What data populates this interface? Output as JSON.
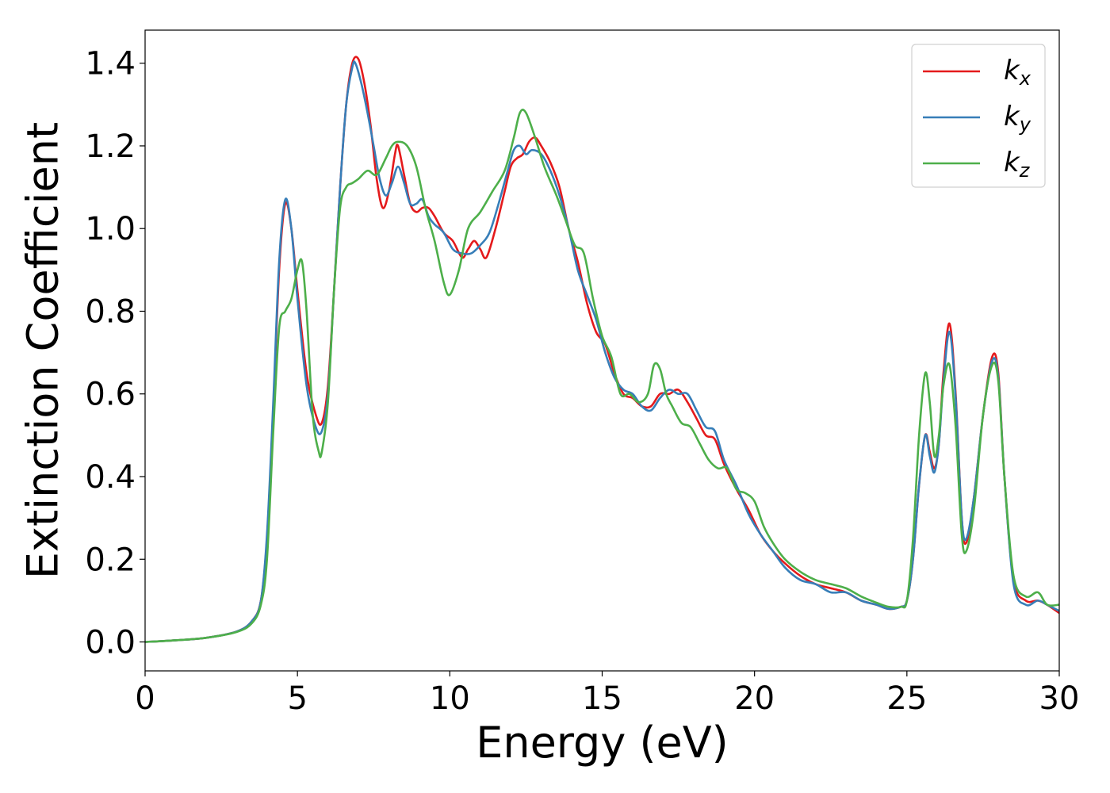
{
  "chart_data": {
    "type": "line",
    "title": "",
    "xlabel": "Energy (eV)",
    "ylabel": "Extinction Coefficient",
    "xlim": [
      0,
      30
    ],
    "ylim": [
      -0.07,
      1.48
    ],
    "xticks": [
      0,
      5,
      10,
      15,
      20,
      25,
      30
    ],
    "xtick_labels": [
      "0",
      "5",
      "10",
      "15",
      "20",
      "25",
      "30"
    ],
    "yticks": [
      0.0,
      0.2,
      0.4,
      0.6,
      0.8,
      1.0,
      1.2,
      1.4
    ],
    "ytick_labels": [
      "0.0",
      "0.2",
      "0.4",
      "0.6",
      "0.8",
      "1.0",
      "1.2",
      "1.4"
    ],
    "grid": false,
    "legend_position": "top-right",
    "series": [
      {
        "name": "k_x",
        "label_base": "k",
        "label_sub": "x",
        "color": "#e41a1c",
        "points": [
          [
            0,
            0
          ],
          [
            1,
            0.004
          ],
          [
            2,
            0.01
          ],
          [
            3,
            0.025
          ],
          [
            3.5,
            0.05
          ],
          [
            3.8,
            0.1
          ],
          [
            4.0,
            0.25
          ],
          [
            4.2,
            0.55
          ],
          [
            4.4,
            0.9
          ],
          [
            4.6,
            1.06
          ],
          [
            4.8,
            1.0
          ],
          [
            5.0,
            0.85
          ],
          [
            5.3,
            0.65
          ],
          [
            5.6,
            0.55
          ],
          [
            5.8,
            0.53
          ],
          [
            6.0,
            0.62
          ],
          [
            6.2,
            0.85
          ],
          [
            6.4,
            1.1
          ],
          [
            6.6,
            1.3
          ],
          [
            6.8,
            1.4
          ],
          [
            7.0,
            1.41
          ],
          [
            7.2,
            1.35
          ],
          [
            7.4,
            1.25
          ],
          [
            7.6,
            1.12
          ],
          [
            7.8,
            1.05
          ],
          [
            8.0,
            1.09
          ],
          [
            8.2,
            1.18
          ],
          [
            8.3,
            1.2
          ],
          [
            8.5,
            1.13
          ],
          [
            8.7,
            1.06
          ],
          [
            8.9,
            1.04
          ],
          [
            9.1,
            1.05
          ],
          [
            9.3,
            1.05
          ],
          [
            9.5,
            1.03
          ],
          [
            9.8,
            0.99
          ],
          [
            10.1,
            0.97
          ],
          [
            10.4,
            0.93
          ],
          [
            10.6,
            0.95
          ],
          [
            10.8,
            0.97
          ],
          [
            11.0,
            0.95
          ],
          [
            11.2,
            0.93
          ],
          [
            11.5,
            1.0
          ],
          [
            11.8,
            1.09
          ],
          [
            12.0,
            1.15
          ],
          [
            12.2,
            1.17
          ],
          [
            12.4,
            1.18
          ],
          [
            12.6,
            1.21
          ],
          [
            12.8,
            1.22
          ],
          [
            13.0,
            1.2
          ],
          [
            13.3,
            1.16
          ],
          [
            13.6,
            1.1
          ],
          [
            13.9,
            1.0
          ],
          [
            14.2,
            0.92
          ],
          [
            14.5,
            0.82
          ],
          [
            14.8,
            0.75
          ],
          [
            15.1,
            0.72
          ],
          [
            15.4,
            0.65
          ],
          [
            15.7,
            0.6
          ],
          [
            16.0,
            0.59
          ],
          [
            16.3,
            0.57
          ],
          [
            16.6,
            0.57
          ],
          [
            16.9,
            0.6
          ],
          [
            17.2,
            0.6
          ],
          [
            17.5,
            0.61
          ],
          [
            17.8,
            0.58
          ],
          [
            18.1,
            0.54
          ],
          [
            18.4,
            0.5
          ],
          [
            18.7,
            0.49
          ],
          [
            19.0,
            0.43
          ],
          [
            19.4,
            0.37
          ],
          [
            19.8,
            0.32
          ],
          [
            20.2,
            0.26
          ],
          [
            20.6,
            0.22
          ],
          [
            21.0,
            0.19
          ],
          [
            21.5,
            0.16
          ],
          [
            22.0,
            0.14
          ],
          [
            22.5,
            0.13
          ],
          [
            23.0,
            0.12
          ],
          [
            23.5,
            0.1
          ],
          [
            24.0,
            0.09
          ],
          [
            24.4,
            0.08
          ],
          [
            24.8,
            0.085
          ],
          [
            25.0,
            0.1
          ],
          [
            25.2,
            0.2
          ],
          [
            25.4,
            0.38
          ],
          [
            25.6,
            0.5
          ],
          [
            25.75,
            0.46
          ],
          [
            25.9,
            0.42
          ],
          [
            26.05,
            0.48
          ],
          [
            26.2,
            0.65
          ],
          [
            26.4,
            0.77
          ],
          [
            26.6,
            0.6
          ],
          [
            26.8,
            0.3
          ],
          [
            26.95,
            0.24
          ],
          [
            27.2,
            0.35
          ],
          [
            27.5,
            0.55
          ],
          [
            27.8,
            0.69
          ],
          [
            28.0,
            0.65
          ],
          [
            28.2,
            0.4
          ],
          [
            28.5,
            0.15
          ],
          [
            28.9,
            0.1
          ],
          [
            29.3,
            0.1
          ],
          [
            29.6,
            0.09
          ],
          [
            30,
            0.07
          ]
        ]
      },
      {
        "name": "k_y",
        "label_base": "k",
        "label_sub": "y",
        "color": "#377eb8",
        "points": [
          [
            0,
            0
          ],
          [
            1,
            0.004
          ],
          [
            2,
            0.01
          ],
          [
            3,
            0.025
          ],
          [
            3.5,
            0.05
          ],
          [
            3.8,
            0.1
          ],
          [
            4.0,
            0.26
          ],
          [
            4.2,
            0.57
          ],
          [
            4.4,
            0.92
          ],
          [
            4.6,
            1.07
          ],
          [
            4.8,
            1.0
          ],
          [
            5.0,
            0.83
          ],
          [
            5.3,
            0.62
          ],
          [
            5.6,
            0.52
          ],
          [
            5.8,
            0.51
          ],
          [
            6.0,
            0.6
          ],
          [
            6.2,
            0.85
          ],
          [
            6.4,
            1.1
          ],
          [
            6.6,
            1.3
          ],
          [
            6.8,
            1.39
          ],
          [
            6.9,
            1.4
          ],
          [
            7.1,
            1.35
          ],
          [
            7.3,
            1.28
          ],
          [
            7.5,
            1.2
          ],
          [
            7.7,
            1.12
          ],
          [
            7.9,
            1.08
          ],
          [
            8.1,
            1.11
          ],
          [
            8.3,
            1.15
          ],
          [
            8.5,
            1.11
          ],
          [
            8.7,
            1.06
          ],
          [
            8.9,
            1.06
          ],
          [
            9.1,
            1.07
          ],
          [
            9.3,
            1.03
          ],
          [
            9.5,
            1.01
          ],
          [
            9.8,
            0.99
          ],
          [
            10.1,
            0.95
          ],
          [
            10.4,
            0.94
          ],
          [
            10.7,
            0.94
          ],
          [
            11.0,
            0.96
          ],
          [
            11.3,
            0.99
          ],
          [
            11.6,
            1.06
          ],
          [
            11.9,
            1.14
          ],
          [
            12.1,
            1.19
          ],
          [
            12.3,
            1.2
          ],
          [
            12.5,
            1.18
          ],
          [
            12.7,
            1.19
          ],
          [
            13.0,
            1.18
          ],
          [
            13.3,
            1.14
          ],
          [
            13.6,
            1.08
          ],
          [
            13.9,
            1.0
          ],
          [
            14.2,
            0.9
          ],
          [
            14.5,
            0.84
          ],
          [
            14.8,
            0.78
          ],
          [
            15.1,
            0.7
          ],
          [
            15.4,
            0.64
          ],
          [
            15.7,
            0.61
          ],
          [
            16.0,
            0.6
          ],
          [
            16.3,
            0.57
          ],
          [
            16.6,
            0.56
          ],
          [
            16.9,
            0.59
          ],
          [
            17.2,
            0.61
          ],
          [
            17.5,
            0.6
          ],
          [
            17.8,
            0.6
          ],
          [
            18.1,
            0.56
          ],
          [
            18.4,
            0.52
          ],
          [
            18.7,
            0.51
          ],
          [
            19.0,
            0.44
          ],
          [
            19.4,
            0.38
          ],
          [
            19.8,
            0.31
          ],
          [
            20.2,
            0.26
          ],
          [
            20.6,
            0.22
          ],
          [
            21.0,
            0.18
          ],
          [
            21.5,
            0.15
          ],
          [
            22.0,
            0.14
          ],
          [
            22.5,
            0.12
          ],
          [
            23.0,
            0.12
          ],
          [
            23.5,
            0.1
          ],
          [
            24.0,
            0.09
          ],
          [
            24.4,
            0.08
          ],
          [
            24.8,
            0.085
          ],
          [
            25.0,
            0.1
          ],
          [
            25.2,
            0.2
          ],
          [
            25.4,
            0.38
          ],
          [
            25.6,
            0.5
          ],
          [
            25.75,
            0.45
          ],
          [
            25.9,
            0.41
          ],
          [
            26.05,
            0.48
          ],
          [
            26.2,
            0.63
          ],
          [
            26.4,
            0.75
          ],
          [
            26.6,
            0.59
          ],
          [
            26.8,
            0.3
          ],
          [
            26.95,
            0.25
          ],
          [
            27.2,
            0.35
          ],
          [
            27.5,
            0.55
          ],
          [
            27.8,
            0.68
          ],
          [
            28.0,
            0.64
          ],
          [
            28.2,
            0.4
          ],
          [
            28.5,
            0.14
          ],
          [
            28.9,
            0.09
          ],
          [
            29.3,
            0.1
          ],
          [
            29.6,
            0.09
          ],
          [
            30,
            0.075
          ]
        ]
      },
      {
        "name": "k_z",
        "label_base": "k",
        "label_sub": "z",
        "color": "#4daf4a",
        "points": [
          [
            0,
            0
          ],
          [
            1,
            0.004
          ],
          [
            2,
            0.01
          ],
          [
            3,
            0.024
          ],
          [
            3.5,
            0.045
          ],
          [
            3.8,
            0.09
          ],
          [
            4.0,
            0.2
          ],
          [
            4.2,
            0.5
          ],
          [
            4.4,
            0.76
          ],
          [
            4.6,
            0.8
          ],
          [
            4.8,
            0.83
          ],
          [
            5.0,
            0.9
          ],
          [
            5.15,
            0.92
          ],
          [
            5.3,
            0.8
          ],
          [
            5.5,
            0.55
          ],
          [
            5.7,
            0.46
          ],
          [
            5.8,
            0.46
          ],
          [
            6.0,
            0.58
          ],
          [
            6.2,
            0.85
          ],
          [
            6.4,
            1.05
          ],
          [
            6.6,
            1.1
          ],
          [
            6.8,
            1.11
          ],
          [
            7.0,
            1.12
          ],
          [
            7.3,
            1.14
          ],
          [
            7.6,
            1.13
          ],
          [
            7.9,
            1.17
          ],
          [
            8.1,
            1.2
          ],
          [
            8.3,
            1.21
          ],
          [
            8.6,
            1.2
          ],
          [
            8.9,
            1.15
          ],
          [
            9.2,
            1.05
          ],
          [
            9.5,
            0.97
          ],
          [
            9.8,
            0.87
          ],
          [
            10.0,
            0.84
          ],
          [
            10.3,
            0.9
          ],
          [
            10.6,
            1.0
          ],
          [
            11.0,
            1.04
          ],
          [
            11.4,
            1.09
          ],
          [
            11.8,
            1.14
          ],
          [
            12.1,
            1.22
          ],
          [
            12.3,
            1.28
          ],
          [
            12.5,
            1.28
          ],
          [
            12.8,
            1.22
          ],
          [
            13.1,
            1.15
          ],
          [
            13.5,
            1.08
          ],
          [
            13.8,
            1.02
          ],
          [
            14.1,
            0.96
          ],
          [
            14.4,
            0.94
          ],
          [
            14.7,
            0.83
          ],
          [
            15.0,
            0.74
          ],
          [
            15.3,
            0.69
          ],
          [
            15.6,
            0.6
          ],
          [
            15.9,
            0.6
          ],
          [
            16.2,
            0.58
          ],
          [
            16.5,
            0.6
          ],
          [
            16.7,
            0.67
          ],
          [
            16.9,
            0.66
          ],
          [
            17.1,
            0.6
          ],
          [
            17.3,
            0.57
          ],
          [
            17.6,
            0.53
          ],
          [
            17.9,
            0.52
          ],
          [
            18.2,
            0.48
          ],
          [
            18.5,
            0.44
          ],
          [
            18.8,
            0.42
          ],
          [
            19.1,
            0.42
          ],
          [
            19.4,
            0.37
          ],
          [
            19.7,
            0.36
          ],
          [
            20.0,
            0.34
          ],
          [
            20.3,
            0.28
          ],
          [
            20.6,
            0.24
          ],
          [
            21.0,
            0.2
          ],
          [
            21.5,
            0.17
          ],
          [
            22.0,
            0.15
          ],
          [
            22.5,
            0.14
          ],
          [
            23.0,
            0.13
          ],
          [
            23.5,
            0.11
          ],
          [
            24.0,
            0.095
          ],
          [
            24.4,
            0.085
          ],
          [
            24.8,
            0.085
          ],
          [
            25.0,
            0.1
          ],
          [
            25.2,
            0.25
          ],
          [
            25.4,
            0.5
          ],
          [
            25.6,
            0.65
          ],
          [
            25.75,
            0.58
          ],
          [
            25.9,
            0.45
          ],
          [
            26.05,
            0.5
          ],
          [
            26.2,
            0.62
          ],
          [
            26.4,
            0.67
          ],
          [
            26.6,
            0.52
          ],
          [
            26.8,
            0.26
          ],
          [
            26.95,
            0.22
          ],
          [
            27.2,
            0.32
          ],
          [
            27.5,
            0.55
          ],
          [
            27.8,
            0.67
          ],
          [
            28.0,
            0.63
          ],
          [
            28.2,
            0.4
          ],
          [
            28.5,
            0.16
          ],
          [
            28.9,
            0.11
          ],
          [
            29.3,
            0.12
          ],
          [
            29.6,
            0.09
          ],
          [
            30,
            0.09
          ]
        ]
      }
    ]
  }
}
